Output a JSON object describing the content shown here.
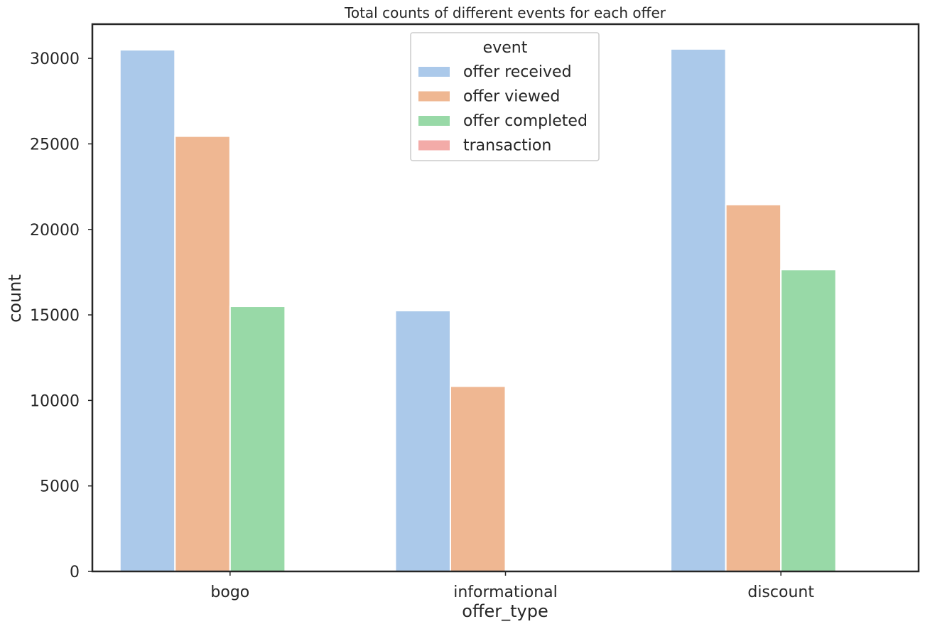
{
  "colors": {
    "offer received": "#abc9ea",
    "offer viewed": "#efb792",
    "offer completed": "#98d9a7",
    "transaction": "#f3aba8",
    "axis": "#262626",
    "text": "#262626"
  },
  "chart_data": {
    "type": "bar",
    "title": "Total counts of different events for each offer",
    "xlabel": "offer_type",
    "ylabel": "count",
    "categories": [
      "bogo",
      "informational",
      "discount"
    ],
    "series": [
      {
        "name": "offer received",
        "values": [
          30500,
          15250,
          30550
        ]
      },
      {
        "name": "offer viewed",
        "values": [
          25450,
          10830,
          21450
        ]
      },
      {
        "name": "offer completed",
        "values": [
          15500,
          0,
          17650
        ]
      },
      {
        "name": "transaction",
        "values": [
          0,
          0,
          0
        ]
      }
    ],
    "ylim": [
      0,
      32000
    ],
    "yticks": [
      0,
      5000,
      10000,
      15000,
      20000,
      25000,
      30000
    ],
    "grid": false,
    "legend": {
      "title": "event",
      "placement": "top-center"
    }
  }
}
